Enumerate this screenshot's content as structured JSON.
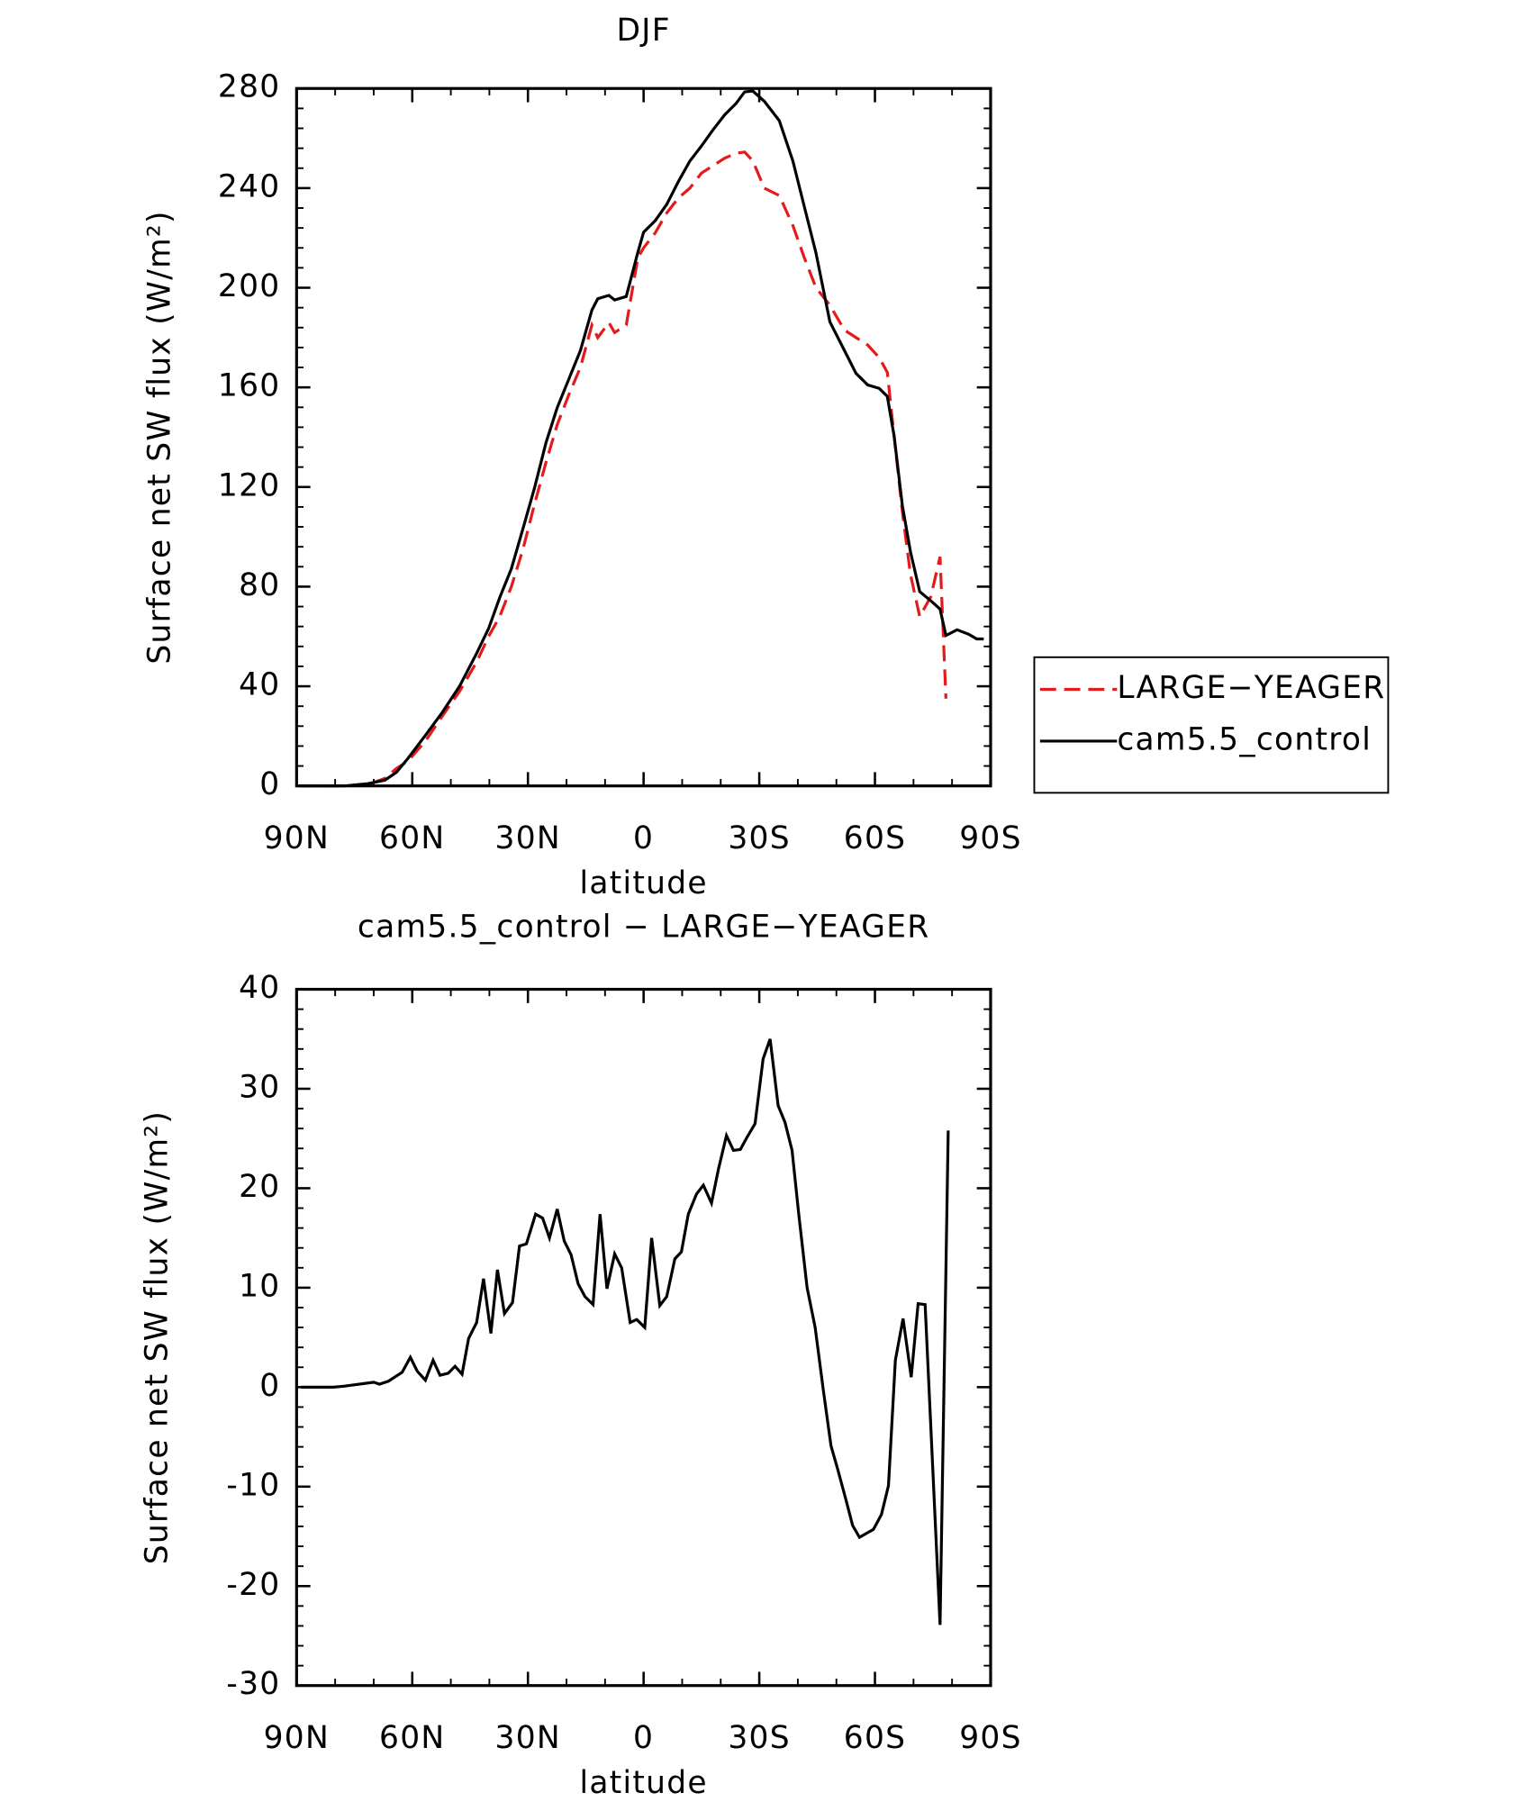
{
  "chart_data": [
    {
      "type": "line",
      "title": "DJF",
      "ylabel": "Surface net SW flux (W/m²)",
      "xlabel": "latitude",
      "x": [
        89.4,
        77.5,
        71.5,
        67.1,
        64.1,
        61.1,
        56.6,
        52.2,
        47.7,
        43.2,
        40.2,
        37.3,
        34.3,
        31.3,
        28.3,
        25.3,
        22.4,
        19.4,
        16.4,
        13.4,
        11.9,
        9.0,
        7.5,
        4.5,
        1.5,
        0,
        -3,
        -6,
        -9,
        -12,
        -15,
        -18,
        -21,
        -24,
        -26.2,
        -28.3,
        -31.3,
        -35.2,
        -38.7,
        -41.7,
        -44.7,
        -48.3,
        -52.1,
        -55.1,
        -58.1,
        -61.1,
        -63.2,
        -65,
        -67.1,
        -69.2,
        -71.6,
        -74.5,
        -76.9,
        -78.4,
        -81.3,
        -84.3,
        -86.4,
        -88.2
      ],
      "series": [
        {
          "name": "LARGE−YEAGER",
          "color": "#e41a1c",
          "line_style": "dashed",
          "values": [
            0,
            0,
            0.5,
            3,
            7,
            10,
            18,
            28,
            38,
            50,
            60,
            68,
            80,
            95,
            113,
            130,
            145,
            157,
            168,
            185,
            180,
            186,
            182,
            185,
            212,
            216,
            222,
            230,
            236,
            240,
            246,
            249,
            252,
            254,
            254.5,
            251,
            240,
            237,
            225,
            212,
            200,
            193,
            183,
            180,
            177,
            172,
            166,
            140,
            110,
            85,
            68,
            76,
            92,
            35,
            null,
            null,
            null,
            null
          ]
        },
        {
          "name": "cam5.5_control",
          "color": "#000000",
          "line_style": "solid",
          "values": [
            0,
            0,
            0.9,
            2.3,
            5.5,
            11.1,
            20.3,
            29.5,
            40.1,
            53.5,
            63.2,
            75.6,
            87.2,
            103.3,
            119.5,
            137.9,
            151.8,
            163.3,
            174.8,
            191,
            195.6,
            196.9,
            195.1,
            196.5,
            214.2,
            222.3,
            226.9,
            233.4,
            242.6,
            250.9,
            256.9,
            263.4,
            269.4,
            274,
            278.6,
            279,
            274.9,
            267.1,
            250.9,
            232.5,
            214,
            186.3,
            174.8,
            165.6,
            161,
            159.6,
            156.4,
            140.2,
            112.5,
            94.1,
            78,
            74.3,
            71,
            60.4,
            62.7,
            60.9,
            59,
            59
          ]
        }
      ],
      "xlim": [
        90,
        -90
      ],
      "xticks": [
        {
          "value": 90,
          "label": "90N"
        },
        {
          "value": 60,
          "label": "60N"
        },
        {
          "value": 30,
          "label": "30N"
        },
        0,
        {
          "value": -30,
          "label": "30S"
        },
        {
          "value": -60,
          "label": "60S"
        },
        {
          "value": -90,
          "label": "90S"
        }
      ],
      "ylim": [
        0,
        280
      ],
      "yticks": [
        0,
        40,
        80,
        120,
        160,
        200,
        240,
        280
      ],
      "legend": "right"
    },
    {
      "type": "line",
      "title": "cam5.5_control − LARGE−YEAGER",
      "ylabel": "Surface net SW flux (W/m²)",
      "xlabel": "latitude",
      "x": [
        88.8,
        80.5,
        77.5,
        70.0,
        68.5,
        66.2,
        62.6,
        60.5,
        58.7,
        56.6,
        54.6,
        52.8,
        50.7,
        48.9,
        47.1,
        45.4,
        43.3,
        41.5,
        39.6,
        37.9,
        36.1,
        34.0,
        32.2,
        30.4,
        28.0,
        26.2,
        24.4,
        22.4,
        20.6,
        18.8,
        17.0,
        15.2,
        13.1,
        11.3,
        9.5,
        7.5,
        5.7,
        3.5,
        1.8,
        -0.3,
        -2.1,
        -4.2,
        -6.0,
        -8.1,
        -9.8,
        -11.6,
        -13.7,
        -15.5,
        -17.6,
        -19.4,
        -21.5,
        -23.3,
        -25.1,
        -26.8,
        -28.9,
        -31.0,
        -32.8,
        -34.9,
        -36.7,
        -38.5,
        -40.3,
        -42.4,
        -44.5,
        -46.6,
        -48.6,
        -50.3,
        -52.4,
        -54.2,
        -56.0,
        -57.8,
        -59.6,
        -61.7,
        -63.5,
        -65.3,
        -67.3,
        -69.4,
        -71.2,
        -73.0,
        -76.9,
        -79.0
      ],
      "series": [
        {
          "name": "cam5.5_control − LARGE−YEAGER",
          "color": "#000000",
          "line_style": "solid",
          "values": [
            0,
            0,
            0.1,
            0.5,
            0.3,
            0.6,
            1.5,
            3,
            1.6,
            0.7,
            2.7,
            1.2,
            1.4,
            2.1,
            1.3,
            4.9,
            6.5,
            10.9,
            5.4,
            11.8,
            7.4,
            8.5,
            14.2,
            14.4,
            17.4,
            17,
            15,
            17.9,
            14.7,
            13.3,
            10.4,
            9.1,
            8.3,
            17.4,
            9.9,
            13.4,
            12,
            6.5,
            6.8,
            6,
            15,
            8.2,
            9.1,
            12.9,
            13.6,
            17.4,
            19.4,
            20.3,
            18.5,
            21.9,
            25.3,
            23.8,
            23.9,
            25.1,
            26.5,
            33,
            35,
            28.3,
            26.6,
            23.8,
            17.2,
            10,
            6,
            -0.3,
            -5.9,
            -8.2,
            -11.2,
            -13.9,
            -15.1,
            -14.7,
            -14.3,
            -12.8,
            -9.9,
            2.7,
            6.9,
            1,
            8.4,
            8.3,
            -23.9,
            25.8
          ]
        }
      ],
      "xlim": [
        90,
        -90
      ],
      "xticks": [
        {
          "value": 90,
          "label": "90N"
        },
        {
          "value": 60,
          "label": "60N"
        },
        {
          "value": 30,
          "label": "30N"
        },
        0,
        {
          "value": -30,
          "label": "30S"
        },
        {
          "value": -60,
          "label": "60S"
        },
        {
          "value": -90,
          "label": "90S"
        }
      ],
      "ylim": [
        -30,
        40
      ],
      "yticks": [
        -30,
        -20,
        -10,
        0,
        10,
        20,
        30,
        40
      ]
    }
  ]
}
